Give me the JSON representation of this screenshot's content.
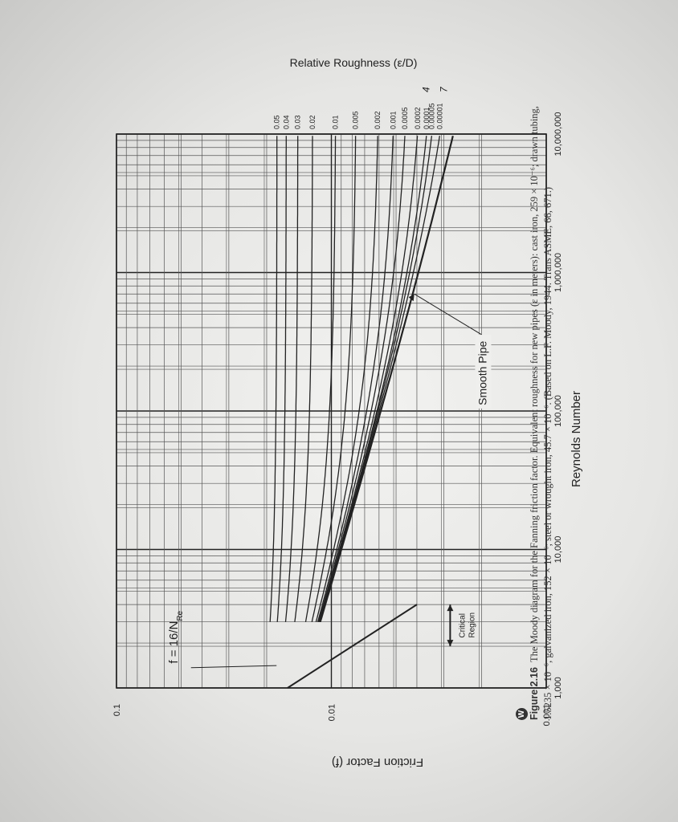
{
  "chart_data": {
    "type": "line",
    "xlabel": "Reynolds Number",
    "ylabel": "Friction Factor (f)",
    "y2label": "Relative Roughness (ε/D)",
    "xscale": "log",
    "yscale": "log",
    "xlim": [
      1000,
      10000000
    ],
    "ylim": [
      0.001,
      0.1
    ],
    "grid": true,
    "x_ticks": [
      {
        "value": 1000,
        "label": "1,000"
      },
      {
        "value": 10000,
        "label": "10,000"
      },
      {
        "value": 100000,
        "label": "100,000"
      },
      {
        "value": 1000000,
        "label": "1,000,000"
      },
      {
        "value": 10000000,
        "label": "10,000,000"
      }
    ],
    "y_ticks": [
      {
        "value": 0.001,
        "label": "0.001"
      },
      {
        "value": 0.01,
        "label": "0.01"
      },
      {
        "value": 0.1,
        "label": "0.1"
      }
    ],
    "laminar": {
      "label": "f = 16/N",
      "subscript": "Re",
      "x": [
        1000,
        4000
      ],
      "y": [
        0.016,
        0.004
      ]
    },
    "critical_region": {
      "label_line1": "Critical",
      "label_line2": "Region",
      "x": [
        2000,
        4000
      ]
    },
    "smooth_pipe_label": "Smooth Pipe",
    "series": [
      {
        "name": "0.05",
        "asymptote": 0.0179
      },
      {
        "name": "0.04",
        "asymptote": 0.0162
      },
      {
        "name": "0.03",
        "asymptote": 0.0143
      },
      {
        "name": "0.02",
        "asymptote": 0.0122
      },
      {
        "name": "0.01",
        "asymptote": 0.0095
      },
      {
        "name": "0.005",
        "asymptote": 0.0076
      },
      {
        "name": "0.002",
        "asymptote": 0.0059
      },
      {
        "name": "0.001",
        "asymptote": 0.0049
      },
      {
        "name": "0.0005",
        "asymptote": 0.0042
      },
      {
        "name": "0.0002",
        "asymptote": 0.0035
      },
      {
        "name": "0.0001",
        "asymptote": 0.003
      },
      {
        "name": "0.00005",
        "asymptote": 0.0027
      },
      {
        "name": "0.00001",
        "asymptote": 0.0022
      },
      {
        "name": "Smooth Pipe",
        "smooth": true
      }
    ],
    "annotations": [
      "4",
      "7"
    ]
  },
  "caption": {
    "badge": "W",
    "fig_label": "Figure 2.16",
    "text": "The Moody diagram for the Fanning friction factor. Equivalent roughness for new pipes (ε in meters): cast iron, 259 × 10⁻⁶; drawn tubing, 1.5235 × 10⁻⁶, galvanized iron, 152 × 10⁻⁶; steel or wrought iron, 45.7 × 10⁻⁶. (Based on L.F. Moody, 1944. Trans ASME, 66, 671.)"
  },
  "colors": {
    "ink": "#222222",
    "grid": "#555555",
    "paper": "#efefed"
  }
}
